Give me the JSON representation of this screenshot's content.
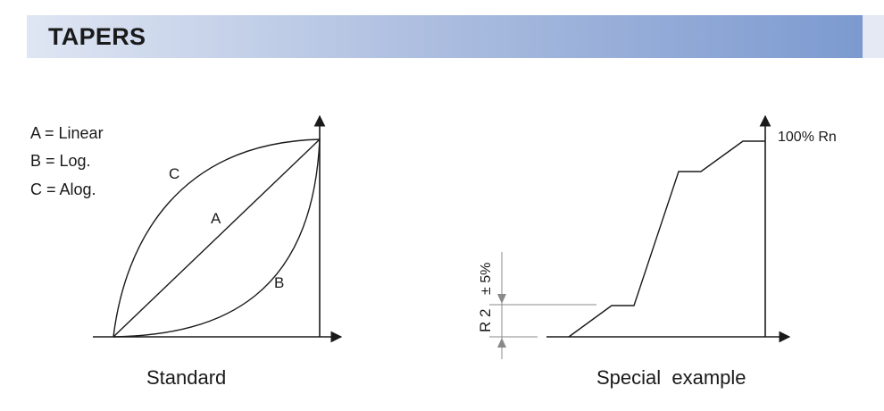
{
  "header": {
    "title": "TAPERS"
  },
  "legend": {
    "a": "A = Linear",
    "b": "B = Log.",
    "c": "C = Alog."
  },
  "standard": {
    "curve_labels": {
      "a": "A",
      "b": "B",
      "c": "C"
    },
    "caption": "Standard"
  },
  "special": {
    "top_label": "100% Rn",
    "r2_label": "R 2",
    "tolerance_label": "± 5%",
    "caption": "Special  example"
  },
  "colors": {
    "header_start": "#dfe6f3",
    "header_end": "#7a98cf",
    "line": "#1a1a1a",
    "guide": "#8a8a8a"
  }
}
